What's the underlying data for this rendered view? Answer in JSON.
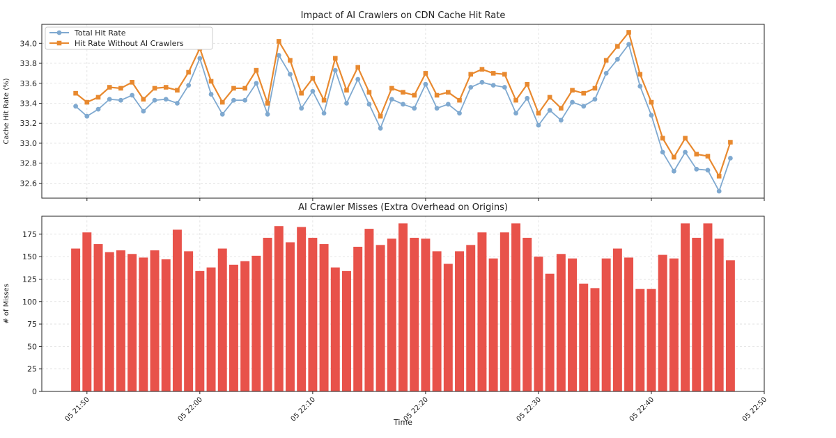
{
  "chart_data": [
    {
      "type": "line",
      "title": "Impact of AI Crawlers on CDN Cache Hit Rate",
      "ylabel": "Cache Hit Rate (%)",
      "x": [
        "05 21:49",
        "05 21:50",
        "05 21:51",
        "05 21:52",
        "05 21:53",
        "05 21:54",
        "05 21:55",
        "05 21:56",
        "05 21:57",
        "05 21:58",
        "05 21:59",
        "05 22:00",
        "05 22:01",
        "05 22:02",
        "05 22:03",
        "05 22:04",
        "05 22:05",
        "05 22:06",
        "05 22:07",
        "05 22:08",
        "05 22:09",
        "05 22:10",
        "05 22:11",
        "05 22:12",
        "05 22:13",
        "05 22:14",
        "05 22:15",
        "05 22:16",
        "05 22:17",
        "05 22:18",
        "05 22:19",
        "05 22:20",
        "05 22:21",
        "05 22:22",
        "05 22:23",
        "05 22:24",
        "05 22:25",
        "05 22:26",
        "05 22:27",
        "05 22:28",
        "05 22:29",
        "05 22:30",
        "05 22:31",
        "05 22:32",
        "05 22:33",
        "05 22:34",
        "05 22:35",
        "05 22:36",
        "05 22:37",
        "05 22:38",
        "05 22:39",
        "05 22:40",
        "05 22:41",
        "05 22:42",
        "05 22:43",
        "05 22:44",
        "05 22:45",
        "05 22:46",
        "05 22:47"
      ],
      "series": [
        {
          "name": "Total Hit Rate",
          "color": "#7fa9d0",
          "marker": "circle",
          "values": [
            33.37,
            33.27,
            33.34,
            33.44,
            33.43,
            33.48,
            33.32,
            33.43,
            33.44,
            33.4,
            33.58,
            33.85,
            33.49,
            33.29,
            33.43,
            33.43,
            33.6,
            33.29,
            33.88,
            33.69,
            33.35,
            33.52,
            33.3,
            33.73,
            33.4,
            33.64,
            33.39,
            33.15,
            33.44,
            33.39,
            33.35,
            33.59,
            33.35,
            33.39,
            33.3,
            33.56,
            33.61,
            33.58,
            33.56,
            33.3,
            33.45,
            33.18,
            33.33,
            33.23,
            33.41,
            33.37,
            33.44,
            33.7,
            33.84,
            33.99,
            33.57,
            33.28,
            32.91,
            32.72,
            32.91,
            32.74,
            32.73,
            32.52,
            32.85
          ]
        },
        {
          "name": "Hit Rate Without AI Crawlers",
          "color": "#e8892f",
          "marker": "square",
          "values": [
            33.5,
            33.41,
            33.46,
            33.56,
            33.55,
            33.61,
            33.44,
            33.55,
            33.56,
            33.53,
            33.71,
            33.95,
            33.62,
            33.41,
            33.55,
            33.55,
            33.73,
            33.4,
            34.02,
            33.83,
            33.5,
            33.65,
            33.43,
            33.85,
            33.53,
            33.76,
            33.51,
            33.27,
            33.55,
            33.51,
            33.48,
            33.7,
            33.48,
            33.51,
            33.43,
            33.69,
            33.74,
            33.7,
            33.69,
            33.43,
            33.59,
            33.3,
            33.46,
            33.35,
            33.53,
            33.5,
            33.55,
            33.83,
            33.97,
            34.11,
            33.69,
            33.41,
            33.05,
            32.86,
            33.05,
            32.89,
            32.87,
            32.67,
            33.01
          ]
        }
      ],
      "xlim": [
        "05 21:46",
        "05 22:50"
      ],
      "ylim": [
        32.45,
        34.19
      ],
      "yticks": [
        32.6,
        32.8,
        {
          "value": 33,
          "label": "33.0"
        },
        33.2,
        33.4,
        33.6,
        33.8,
        {
          "value": 34,
          "label": "34.0"
        }
      ],
      "grid": true,
      "legend": "upper left"
    },
    {
      "type": "bar",
      "title": "AI Crawler Misses (Extra Overhead on Origins)",
      "xlabel": "Time",
      "ylabel": "# of Misses",
      "color": "#e8524a",
      "x": [
        "05 21:49",
        "05 21:50",
        "05 21:51",
        "05 21:52",
        "05 21:53",
        "05 21:54",
        "05 21:55",
        "05 21:56",
        "05 21:57",
        "05 21:58",
        "05 21:59",
        "05 22:00",
        "05 22:01",
        "05 22:02",
        "05 22:03",
        "05 22:04",
        "05 22:05",
        "05 22:06",
        "05 22:07",
        "05 22:08",
        "05 22:09",
        "05 22:10",
        "05 22:11",
        "05 22:12",
        "05 22:13",
        "05 22:14",
        "05 22:15",
        "05 22:16",
        "05 22:17",
        "05 22:18",
        "05 22:19",
        "05 22:20",
        "05 22:21",
        "05 22:22",
        "05 22:23",
        "05 22:24",
        "05 22:25",
        "05 22:26",
        "05 22:27",
        "05 22:28",
        "05 22:29",
        "05 22:30",
        "05 22:31",
        "05 22:32",
        "05 22:33",
        "05 22:34",
        "05 22:35",
        "05 22:36",
        "05 22:37",
        "05 22:38",
        "05 22:39",
        "05 22:40",
        "05 22:41",
        "05 22:42",
        "05 22:43",
        "05 22:44",
        "05 22:45",
        "05 22:46",
        "05 22:47"
      ],
      "values": [
        159,
        177,
        164,
        155,
        157,
        153,
        149,
        157,
        147,
        180,
        156,
        134,
        138,
        159,
        141,
        145,
        151,
        171,
        184,
        166,
        183,
        171,
        164,
        138,
        134,
        161,
        181,
        163,
        170,
        187,
        171,
        170,
        156,
        142,
        156,
        163,
        177,
        148,
        177,
        187,
        171,
        150,
        131,
        153,
        148,
        120,
        115,
        148,
        159,
        149,
        114,
        114,
        152,
        148,
        187,
        171,
        187,
        170,
        146
      ],
      "xlim": [
        "05 21:46",
        "05 22:50"
      ],
      "xticks": [
        "05 21:50",
        "05 22:00",
        "05 22:10",
        "05 22:20",
        "05 22:30",
        "05 22:40",
        "05 22:50"
      ],
      "ylim": [
        0,
        195
      ],
      "yticks": [
        0,
        25,
        50,
        75,
        100,
        125,
        150,
        175
      ],
      "grid": true
    }
  ]
}
